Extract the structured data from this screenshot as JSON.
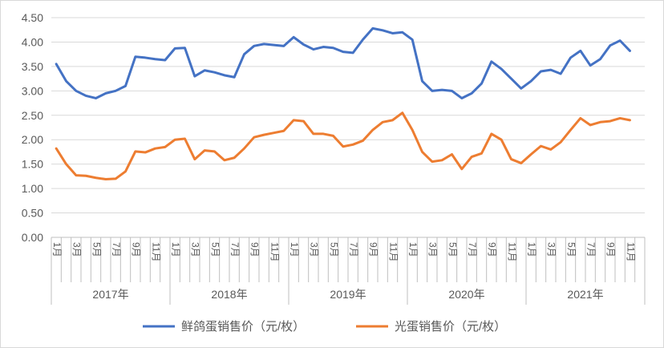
{
  "chart_data": {
    "type": "line",
    "ylim": [
      0,
      4.5
    ],
    "yticks": [
      "0.00",
      "0.50",
      "1.00",
      "1.50",
      "2.00",
      "2.50",
      "3.00",
      "3.50",
      "4.00",
      "4.50"
    ],
    "grid": "horizontal",
    "legend": "bottom",
    "years": [
      "2017年",
      "2018年",
      "2019年",
      "2020年",
      "2021年"
    ],
    "month_labels": [
      "1月",
      "3月",
      "5月",
      "7月",
      "9月",
      "11月"
    ],
    "series": [
      {
        "name": "鲜鸽蛋销售价（元/枚）",
        "color": "#4472C4",
        "values": [
          3.55,
          3.2,
          3.0,
          2.9,
          2.85,
          2.95,
          3.0,
          3.1,
          3.7,
          3.68,
          3.65,
          3.63,
          3.87,
          3.88,
          3.3,
          3.42,
          3.38,
          3.32,
          3.28,
          3.75,
          3.92,
          3.96,
          3.94,
          3.92,
          4.1,
          3.95,
          3.85,
          3.9,
          3.88,
          3.8,
          3.78,
          4.05,
          4.28,
          4.24,
          4.18,
          4.2,
          4.05,
          3.2,
          3.0,
          3.02,
          3.0,
          2.85,
          2.95,
          3.15,
          3.6,
          3.45,
          3.25,
          3.05,
          3.2,
          3.4,
          3.43,
          3.35,
          3.68,
          3.82,
          3.52,
          3.65,
          3.93,
          4.03,
          3.82
        ]
      },
      {
        "name": "光蛋销售价（元/枚）",
        "color": "#ED7D31",
        "values": [
          1.82,
          1.5,
          1.27,
          1.26,
          1.22,
          1.19,
          1.2,
          1.35,
          1.76,
          1.74,
          1.82,
          1.85,
          2.0,
          2.02,
          1.6,
          1.78,
          1.76,
          1.58,
          1.63,
          1.82,
          2.05,
          2.1,
          2.14,
          2.18,
          2.4,
          2.38,
          2.12,
          2.12,
          2.08,
          1.86,
          1.9,
          1.98,
          2.2,
          2.36,
          2.4,
          2.55,
          2.2,
          1.75,
          1.55,
          1.58,
          1.7,
          1.4,
          1.65,
          1.72,
          2.12,
          2.0,
          1.6,
          1.52,
          1.7,
          1.87,
          1.8,
          1.95,
          2.2,
          2.44,
          2.3,
          2.36,
          2.38,
          2.44,
          2.4
        ]
      }
    ]
  }
}
